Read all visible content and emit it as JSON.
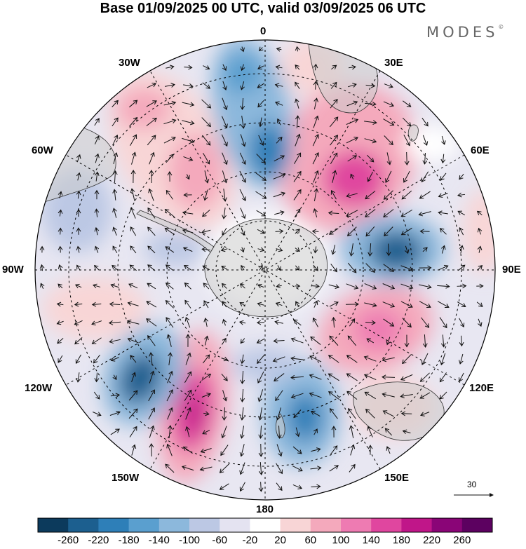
{
  "header": {
    "title": "Base 01/09/2025 00 UTC, valid 03/09/2025 06 UTC",
    "brand": "MODES",
    "brand_mark": "©"
  },
  "map": {
    "projection": "south-polar-stereographic",
    "field": "anomaly",
    "longitude_labels": [
      "0",
      "30E",
      "60E",
      "90E",
      "120E",
      "150E",
      "180",
      "150W",
      "120W",
      "90W",
      "60W",
      "30W"
    ],
    "anomaly_centers": [
      {
        "sign": "negative",
        "near": "0"
      },
      {
        "sign": "positive",
        "near": "40E"
      },
      {
        "sign": "negative",
        "near": "90E"
      },
      {
        "sign": "positive",
        "near": "125E"
      },
      {
        "sign": "negative",
        "near": "165E"
      },
      {
        "sign": "positive",
        "near": "150W"
      },
      {
        "sign": "negative",
        "near": "125W"
      },
      {
        "sign": "positive",
        "near": "35W"
      }
    ]
  },
  "vector_reference": {
    "value": "30"
  },
  "colorbar": {
    "ticks": [
      "-260",
      "-220",
      "-180",
      "-140",
      "-100",
      "-60",
      "-20",
      "20",
      "60",
      "100",
      "140",
      "180",
      "220",
      "260"
    ],
    "colors": [
      "#0c3a5c",
      "#1c5f8f",
      "#2e7fb8",
      "#5a9fcf",
      "#8cb8dc",
      "#bcc8e4",
      "#e4e3f1",
      "#ffffff",
      "#f8d5d6",
      "#f4a9bc",
      "#ee7bb2",
      "#e0469f",
      "#c01689",
      "#8a0577",
      "#5c0160"
    ]
  }
}
